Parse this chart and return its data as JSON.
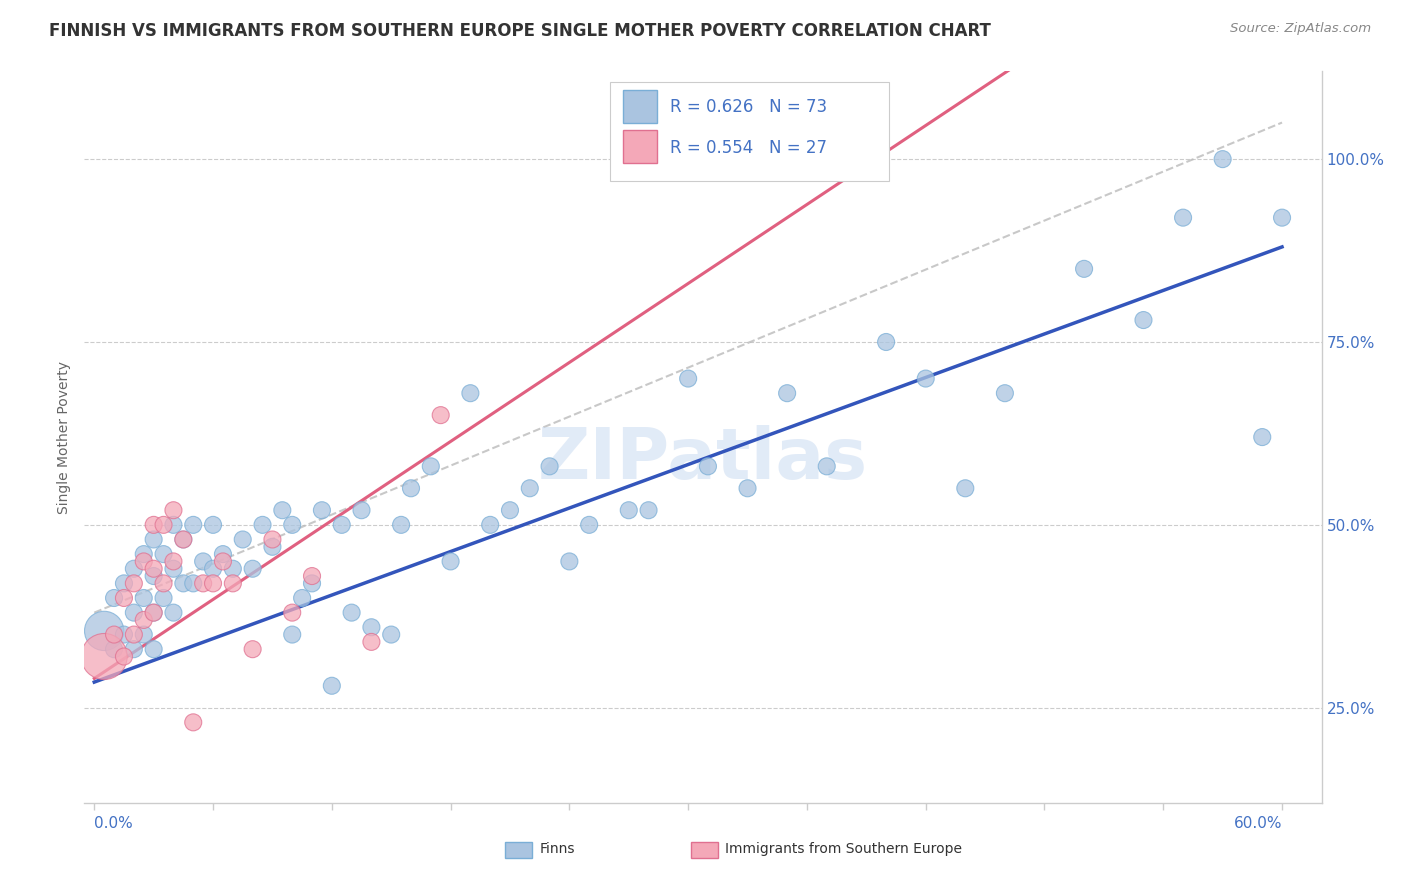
{
  "title": "FINNISH VS IMMIGRANTS FROM SOUTHERN EUROPE SINGLE MOTHER POVERTY CORRELATION CHART",
  "source": "Source: ZipAtlas.com",
  "ylabel": "Single Mother Poverty",
  "y_tick_labels_right": [
    "25.0%",
    "50.0%",
    "75.0%",
    "100.0%"
  ],
  "finns_R": 0.626,
  "finns_N": 73,
  "immigrants_R": 0.554,
  "immigrants_N": 27,
  "finns_color": "#aac4e0",
  "finns_edge": "#7aaed6",
  "immigrants_color": "#f4a8b8",
  "immigrants_edge": "#e07090",
  "trend_finn_color": "#3355bb",
  "trend_imm_color": "#e06080",
  "ref_line_color": "#bbbbbb",
  "background_color": "#ffffff",
  "watermark": "ZIPatlas",
  "legend_blue_color": "#4472c4",
  "title_color": "#333333",
  "right_axis_color": "#4472c4",
  "finns_x": [
    0.005,
    0.01,
    0.01,
    0.015,
    0.015,
    0.02,
    0.02,
    0.02,
    0.025,
    0.025,
    0.025,
    0.03,
    0.03,
    0.03,
    0.03,
    0.035,
    0.035,
    0.04,
    0.04,
    0.04,
    0.045,
    0.045,
    0.05,
    0.05,
    0.055,
    0.06,
    0.06,
    0.065,
    0.07,
    0.075,
    0.08,
    0.085,
    0.09,
    0.095,
    0.1,
    0.1,
    0.105,
    0.11,
    0.115,
    0.12,
    0.125,
    0.13,
    0.135,
    0.14,
    0.15,
    0.155,
    0.16,
    0.17,
    0.18,
    0.19,
    0.2,
    0.21,
    0.22,
    0.23,
    0.24,
    0.25,
    0.27,
    0.28,
    0.3,
    0.31,
    0.33,
    0.35,
    0.37,
    0.4,
    0.42,
    0.44,
    0.46,
    0.5,
    0.53,
    0.55,
    0.57,
    0.59,
    0.6
  ],
  "finns_y": [
    0.355,
    0.33,
    0.4,
    0.35,
    0.42,
    0.33,
    0.38,
    0.44,
    0.35,
    0.4,
    0.46,
    0.33,
    0.38,
    0.43,
    0.48,
    0.4,
    0.46,
    0.38,
    0.44,
    0.5,
    0.42,
    0.48,
    0.42,
    0.5,
    0.45,
    0.44,
    0.5,
    0.46,
    0.44,
    0.48,
    0.44,
    0.5,
    0.47,
    0.52,
    0.35,
    0.5,
    0.4,
    0.42,
    0.52,
    0.28,
    0.5,
    0.38,
    0.52,
    0.36,
    0.35,
    0.5,
    0.55,
    0.58,
    0.45,
    0.68,
    0.5,
    0.52,
    0.55,
    0.58,
    0.45,
    0.5,
    0.52,
    0.52,
    0.7,
    0.58,
    0.55,
    0.68,
    0.58,
    0.75,
    0.7,
    0.55,
    0.68,
    0.85,
    0.78,
    0.92,
    1.0,
    0.62,
    0.92
  ],
  "finns_sizes": [
    800,
    150,
    150,
    150,
    150,
    150,
    150,
    150,
    150,
    150,
    150,
    150,
    150,
    150,
    150,
    150,
    150,
    150,
    150,
    150,
    150,
    150,
    150,
    150,
    150,
    150,
    150,
    150,
    150,
    150,
    150,
    150,
    150,
    150,
    150,
    150,
    150,
    150,
    150,
    150,
    150,
    150,
    150,
    150,
    150,
    150,
    150,
    150,
    150,
    150,
    150,
    150,
    150,
    150,
    150,
    150,
    150,
    150,
    150,
    150,
    150,
    150,
    150,
    150,
    150,
    150,
    150,
    150,
    150,
    150,
    150,
    150,
    150
  ],
  "immigrants_x": [
    0.005,
    0.01,
    0.015,
    0.015,
    0.02,
    0.02,
    0.025,
    0.025,
    0.03,
    0.03,
    0.03,
    0.035,
    0.035,
    0.04,
    0.04,
    0.045,
    0.05,
    0.055,
    0.06,
    0.065,
    0.07,
    0.08,
    0.09,
    0.1,
    0.11,
    0.14,
    0.175
  ],
  "immigrants_y": [
    0.32,
    0.35,
    0.32,
    0.4,
    0.35,
    0.42,
    0.37,
    0.45,
    0.38,
    0.44,
    0.5,
    0.42,
    0.5,
    0.45,
    0.52,
    0.48,
    0.23,
    0.42,
    0.42,
    0.45,
    0.42,
    0.33,
    0.48,
    0.38,
    0.43,
    0.34,
    0.65
  ],
  "immigrants_sizes": [
    1100,
    150,
    150,
    150,
    150,
    150,
    150,
    150,
    150,
    150,
    150,
    150,
    150,
    150,
    150,
    150,
    150,
    150,
    150,
    150,
    150,
    150,
    150,
    150,
    150,
    150,
    150
  ],
  "finn_trend_x0": 0.0,
  "finn_trend_y0": 0.285,
  "finn_trend_x1": 0.6,
  "finn_trend_y1": 0.88,
  "imm_trend_x0": 0.0,
  "imm_trend_y0": 0.29,
  "imm_trend_x1": 0.2,
  "imm_trend_y1": 0.65,
  "ref_line_x0": 0.0,
  "ref_line_y0": 0.38,
  "ref_line_x1": 0.6,
  "ref_line_y1": 1.05,
  "xlim": [
    -0.005,
    0.62
  ],
  "ylim": [
    0.12,
    1.12
  ]
}
